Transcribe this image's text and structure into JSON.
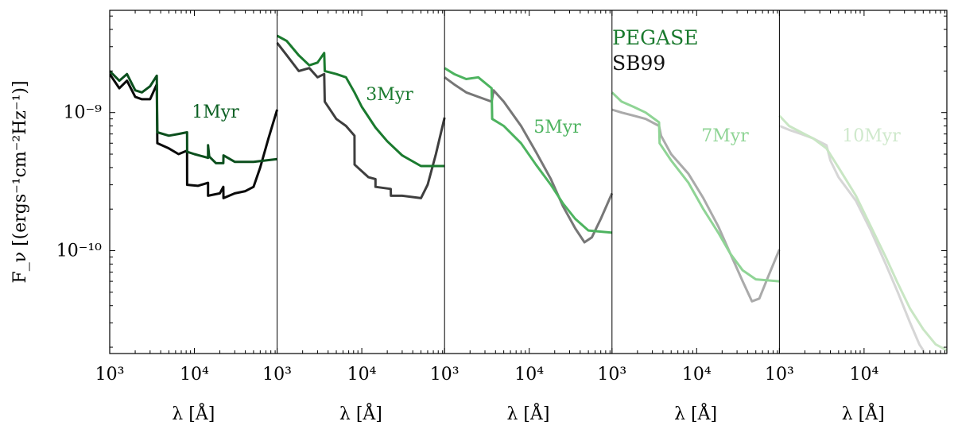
{
  "chart_data": {
    "type": "line",
    "ylabel": "F_ν [(ergs⁻¹cm⁻²Hz⁻¹)]",
    "xlabel": "λ [Å]",
    "x_scale": "log",
    "y_scale": "log",
    "xlim": [
      1000,
      95000
    ],
    "ylim": [
      1.8e-11,
      5.5e-09
    ],
    "x_ticks": [
      {
        "value": 1000,
        "label": "10³"
      },
      {
        "value": 10000,
        "label": "10⁴"
      }
    ],
    "y_ticks": [
      {
        "value": 1e-09,
        "label": "10⁻⁹"
      },
      {
        "value": 1e-10,
        "label": "10⁻¹⁰"
      }
    ],
    "legend": {
      "placement": "top-right of panel 3",
      "entries": [
        {
          "label": "PEGASE",
          "color": "#1a7a2e"
        },
        {
          "label": "SB99",
          "color": "#111111"
        }
      ]
    },
    "panels": [
      {
        "label": "1Myr",
        "label_color": "#0b5f22",
        "pegase_color": "#0b4f1d",
        "sb99_color": "#0a0a0a",
        "pegase": [
          [
            1000,
            2e-09
          ],
          [
            1300,
            1.7e-09
          ],
          [
            1600,
            1.9e-09
          ],
          [
            2000,
            1.45e-09
          ],
          [
            2400,
            1.4e-09
          ],
          [
            3000,
            1.55e-09
          ],
          [
            3600,
            1.85e-09
          ],
          [
            3650,
            7.2e-10
          ],
          [
            5000,
            6.8e-10
          ],
          [
            6500,
            7e-10
          ],
          [
            8200,
            7.2e-10
          ],
          [
            8220,
            5.2e-10
          ],
          [
            10000,
            5e-10
          ],
          [
            14500,
            4.7e-10
          ],
          [
            14520,
            5.8e-10
          ],
          [
            15000,
            4.8e-10
          ],
          [
            18000,
            4.3e-10
          ],
          [
            22000,
            4.3e-10
          ],
          [
            22050,
            4.9e-10
          ],
          [
            30000,
            4.4e-10
          ],
          [
            50000,
            4.4e-10
          ],
          [
            95000,
            4.6e-10
          ]
        ],
        "sb99": [
          [
            1000,
            1.9e-09
          ],
          [
            1300,
            1.5e-09
          ],
          [
            1600,
            1.7e-09
          ],
          [
            2000,
            1.3e-09
          ],
          [
            2400,
            1.25e-09
          ],
          [
            3000,
            1.25e-09
          ],
          [
            3600,
            1.6e-09
          ],
          [
            3650,
            6e-10
          ],
          [
            5000,
            5.5e-10
          ],
          [
            6500,
            5e-10
          ],
          [
            8200,
            5.3e-10
          ],
          [
            8220,
            3e-10
          ],
          [
            11000,
            2.95e-10
          ],
          [
            14500,
            3.1e-10
          ],
          [
            14520,
            2.5e-10
          ],
          [
            20000,
            2.6e-10
          ],
          [
            22000,
            2.9e-10
          ],
          [
            22050,
            2.4e-10
          ],
          [
            30000,
            2.6e-10
          ],
          [
            40000,
            2.7e-10
          ],
          [
            50000,
            2.9e-10
          ],
          [
            60000,
            4e-10
          ],
          [
            75000,
            6.5e-10
          ],
          [
            95000,
            1.05e-09
          ]
        ]
      },
      {
        "label": "3Myr",
        "label_color": "#1a7a2e",
        "pegase_color": "#1a7a2e",
        "sb99_color": "#3e3e3e",
        "pegase": [
          [
            1000,
            3.6e-09
          ],
          [
            1300,
            3.3e-09
          ],
          [
            1800,
            2.6e-09
          ],
          [
            2400,
            2.2e-09
          ],
          [
            3000,
            2.3e-09
          ],
          [
            3600,
            2.7e-09
          ],
          [
            3650,
            2e-09
          ],
          [
            5000,
            1.9e-09
          ],
          [
            6500,
            1.8e-09
          ],
          [
            8200,
            1.4e-09
          ],
          [
            10000,
            1.1e-09
          ],
          [
            14500,
            7.8e-10
          ],
          [
            20000,
            6.2e-10
          ],
          [
            30000,
            4.9e-10
          ],
          [
            50000,
            4.1e-10
          ],
          [
            95000,
            4.1e-10
          ]
        ],
        "sb99": [
          [
            1000,
            3.2e-09
          ],
          [
            1300,
            2.6e-09
          ],
          [
            1800,
            2e-09
          ],
          [
            2400,
            2.1e-09
          ],
          [
            3000,
            1.8e-09
          ],
          [
            3600,
            1.9e-09
          ],
          [
            3650,
            1.2e-09
          ],
          [
            5000,
            9e-10
          ],
          [
            6500,
            8e-10
          ],
          [
            8200,
            6.8e-10
          ],
          [
            8220,
            4.2e-10
          ],
          [
            12000,
            3.4e-10
          ],
          [
            14500,
            3.3e-10
          ],
          [
            14520,
            2.9e-10
          ],
          [
            22000,
            2.8e-10
          ],
          [
            22050,
            2.5e-10
          ],
          [
            30000,
            2.5e-10
          ],
          [
            50000,
            2.4e-10
          ],
          [
            60000,
            3e-10
          ],
          [
            75000,
            5e-10
          ],
          [
            95000,
            9.2e-10
          ]
        ]
      },
      {
        "label": "5Myr",
        "label_color": "#4db35f",
        "pegase_color": "#4db35f",
        "sb99_color": "#777777",
        "pegase": [
          [
            1000,
            2.1e-09
          ],
          [
            1300,
            1.9e-09
          ],
          [
            1800,
            1.75e-09
          ],
          [
            2500,
            1.8e-09
          ],
          [
            3600,
            1.5e-09
          ],
          [
            3650,
            9e-10
          ],
          [
            5000,
            8e-10
          ],
          [
            8000,
            6e-10
          ],
          [
            12000,
            4.2e-10
          ],
          [
            18000,
            3e-10
          ],
          [
            25000,
            2.2e-10
          ],
          [
            35000,
            1.7e-10
          ],
          [
            50000,
            1.4e-10
          ],
          [
            95000,
            1.35e-10
          ]
        ],
        "sb99": [
          [
            1000,
            1.8e-09
          ],
          [
            1300,
            1.6e-09
          ],
          [
            1800,
            1.4e-09
          ],
          [
            2500,
            1.3e-09
          ],
          [
            3600,
            1.2e-09
          ],
          [
            3800,
            1.45e-09
          ],
          [
            5000,
            1.2e-09
          ],
          [
            8000,
            8e-10
          ],
          [
            12000,
            5.2e-10
          ],
          [
            18000,
            3.3e-10
          ],
          [
            25000,
            2.1e-10
          ],
          [
            35000,
            1.45e-10
          ],
          [
            45000,
            1.15e-10
          ],
          [
            55000,
            1.25e-10
          ],
          [
            70000,
            1.7e-10
          ],
          [
            95000,
            2.6e-10
          ]
        ]
      },
      {
        "label": "7Myr",
        "label_color": "#8fd495",
        "pegase_color": "#8fd495",
        "sb99_color": "#aaaaaa",
        "pegase": [
          [
            1000,
            1.4e-09
          ],
          [
            1300,
            1.2e-09
          ],
          [
            1800,
            1.1e-09
          ],
          [
            2500,
            1e-09
          ],
          [
            3600,
            8.5e-10
          ],
          [
            3650,
            6e-10
          ],
          [
            5000,
            4.5e-10
          ],
          [
            8000,
            3.1e-10
          ],
          [
            12000,
            2e-10
          ],
          [
            18000,
            1.35e-10
          ],
          [
            25000,
            9.5e-11
          ],
          [
            35000,
            7.2e-11
          ],
          [
            50000,
            6.2e-11
          ],
          [
            95000,
            6e-11
          ]
        ],
        "sb99": [
          [
            1000,
            1.05e-09
          ],
          [
            1300,
            1e-09
          ],
          [
            1800,
            9.5e-10
          ],
          [
            2500,
            9e-10
          ],
          [
            3600,
            8e-10
          ],
          [
            3800,
            6.8e-10
          ],
          [
            5000,
            5e-10
          ],
          [
            8000,
            3.6e-10
          ],
          [
            12000,
            2.4e-10
          ],
          [
            18000,
            1.5e-10
          ],
          [
            25000,
            9.5e-11
          ],
          [
            35000,
            6e-11
          ],
          [
            45000,
            4.3e-11
          ],
          [
            55000,
            4.5e-11
          ],
          [
            70000,
            6.5e-11
          ],
          [
            95000,
            1.02e-10
          ]
        ]
      },
      {
        "label": "10Myr",
        "label_color": "#cfe9cc",
        "pegase_color": "#c9e6c4",
        "sb99_color": "#d6d6d6",
        "pegase": [
          [
            1000,
            9.5e-10
          ],
          [
            1300,
            8e-10
          ],
          [
            1800,
            7.2e-10
          ],
          [
            2500,
            6.5e-10
          ],
          [
            3600,
            5.5e-10
          ],
          [
            5000,
            4e-10
          ],
          [
            8000,
            2.5e-10
          ],
          [
            12000,
            1.5e-10
          ],
          [
            18000,
            9e-11
          ],
          [
            25000,
            5.8e-11
          ],
          [
            35000,
            3.8e-11
          ],
          [
            50000,
            2.7e-11
          ],
          [
            70000,
            2.1e-11
          ],
          [
            95000,
            1.9e-11
          ]
        ],
        "sb99": [
          [
            1000,
            8e-10
          ],
          [
            1300,
            7.5e-10
          ],
          [
            1800,
            7e-10
          ],
          [
            2500,
            6.5e-10
          ],
          [
            3600,
            5.8e-10
          ],
          [
            4000,
            4.5e-10
          ],
          [
            5000,
            3.4e-10
          ],
          [
            8000,
            2.3e-10
          ],
          [
            12000,
            1.4e-10
          ],
          [
            18000,
            8e-11
          ],
          [
            25000,
            5e-11
          ],
          [
            35000,
            3e-11
          ],
          [
            45000,
            2.1e-11
          ],
          [
            50000,
            1.9e-11
          ],
          [
            55000,
            1.7e-11
          ]
        ]
      }
    ]
  }
}
